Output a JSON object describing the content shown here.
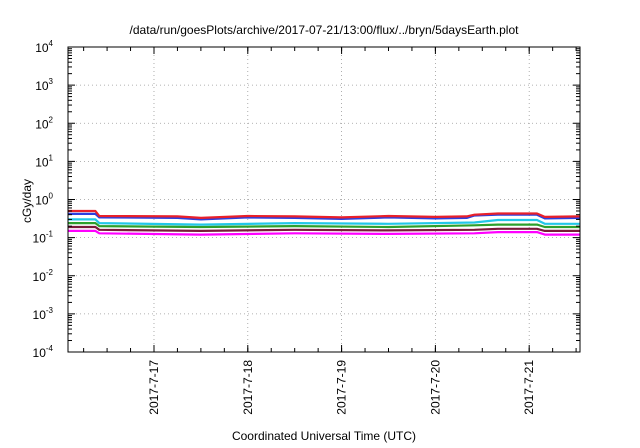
{
  "chart_data": {
    "type": "line",
    "title": "/data/run/goesPlots/archive/2017-07-21/13:00/flux/../bryn/5daysEarth.plot",
    "xlabel": "Coordinated Universal Time (UTC)",
    "ylabel": "cGy/day",
    "y_scale": "log",
    "ylim": [
      0.0001,
      10000
    ],
    "y_ticks": [
      {
        "value": 0.0001,
        "base": "10",
        "exp": "-4"
      },
      {
        "value": 0.001,
        "base": "10",
        "exp": "-3"
      },
      {
        "value": 0.01,
        "base": "10",
        "exp": "-2"
      },
      {
        "value": 0.1,
        "base": "10",
        "exp": "-1"
      },
      {
        "value": 1,
        "base": "10",
        "exp": "0"
      },
      {
        "value": 10,
        "base": "10",
        "exp": "1"
      },
      {
        "value": 100,
        "base": "10",
        "exp": "2"
      },
      {
        "value": 1000,
        "base": "10",
        "exp": "3"
      },
      {
        "value": 10000,
        "base": "10",
        "exp": "4"
      }
    ],
    "x_start": "2017-07-16T02:00",
    "x_end": "2017-07-21T13:00",
    "x_ticks": [
      {
        "value": "2017-07-17T00:00",
        "label": "2017-7-17"
      },
      {
        "value": "2017-07-18T00:00",
        "label": "2017-7-18"
      },
      {
        "value": "2017-07-19T00:00",
        "label": "2017-7-19"
      },
      {
        "value": "2017-07-20T00:00",
        "label": "2017-7-20"
      },
      {
        "value": "2017-07-21T00:00",
        "label": "2017-7-21"
      }
    ],
    "grid": true,
    "series": [
      {
        "color": "#e8202a",
        "x": [
          "2017-07-16T02:00",
          "2017-07-16T09:00",
          "2017-07-16T10:00",
          "2017-07-17T06:00",
          "2017-07-17T12:00",
          "2017-07-18T00:00",
          "2017-07-18T12:00",
          "2017-07-19T00:00",
          "2017-07-19T12:00",
          "2017-07-20T00:00",
          "2017-07-20T08:00",
          "2017-07-20T10:00",
          "2017-07-20T16:00",
          "2017-07-21T02:00",
          "2017-07-21T04:00",
          "2017-07-21T13:00"
        ],
        "y": [
          0.5,
          0.5,
          0.37,
          0.36,
          0.33,
          0.37,
          0.36,
          0.34,
          0.37,
          0.35,
          0.36,
          0.4,
          0.43,
          0.43,
          0.35,
          0.36
        ]
      },
      {
        "color": "#2b3fe0",
        "x": [
          "2017-07-16T02:00",
          "2017-07-16T09:00",
          "2017-07-16T10:00",
          "2017-07-17T06:00",
          "2017-07-17T12:00",
          "2017-07-18T00:00",
          "2017-07-18T12:00",
          "2017-07-19T00:00",
          "2017-07-19T12:00",
          "2017-07-20T00:00",
          "2017-07-20T08:00",
          "2017-07-20T10:00",
          "2017-07-20T16:00",
          "2017-07-21T02:00",
          "2017-07-21T04:00",
          "2017-07-21T13:00"
        ],
        "y": [
          0.42,
          0.42,
          0.34,
          0.33,
          0.3,
          0.34,
          0.33,
          0.31,
          0.34,
          0.32,
          0.33,
          0.38,
          0.4,
          0.4,
          0.32,
          0.33
        ]
      },
      {
        "color": "#22c7e8",
        "x": [
          "2017-07-16T02:00",
          "2017-07-16T09:00",
          "2017-07-16T10:00",
          "2017-07-17T12:00",
          "2017-07-18T12:00",
          "2017-07-19T12:00",
          "2017-07-20T10:00",
          "2017-07-20T16:00",
          "2017-07-21T02:00",
          "2017-07-21T04:00",
          "2017-07-21T13:00"
        ],
        "y": [
          0.3,
          0.3,
          0.24,
          0.22,
          0.24,
          0.23,
          0.25,
          0.29,
          0.29,
          0.23,
          0.23
        ]
      },
      {
        "color": "#2ca02c",
        "x": [
          "2017-07-16T02:00",
          "2017-07-16T09:00",
          "2017-07-16T10:00",
          "2017-07-17T12:00",
          "2017-07-18T12:00",
          "2017-07-19T12:00",
          "2017-07-20T10:00",
          "2017-07-20T16:00",
          "2017-07-21T02:00",
          "2017-07-21T04:00",
          "2017-07-21T13:00"
        ],
        "y": [
          0.24,
          0.24,
          0.2,
          0.19,
          0.2,
          0.19,
          0.21,
          0.22,
          0.22,
          0.19,
          0.19
        ]
      },
      {
        "color": "#7a1a3a",
        "x": [
          "2017-07-16T02:00",
          "2017-07-16T09:00",
          "2017-07-16T10:00",
          "2017-07-17T12:00",
          "2017-07-18T12:00",
          "2017-07-19T12:00",
          "2017-07-20T10:00",
          "2017-07-20T16:00",
          "2017-07-21T02:00",
          "2017-07-21T04:00",
          "2017-07-21T13:00"
        ],
        "y": [
          0.19,
          0.19,
          0.16,
          0.15,
          0.16,
          0.155,
          0.16,
          0.17,
          0.17,
          0.15,
          0.15
        ]
      },
      {
        "color": "#ff00ff",
        "x": [
          "2017-07-16T02:00",
          "2017-07-16T09:00",
          "2017-07-16T10:00",
          "2017-07-17T12:00",
          "2017-07-18T12:00",
          "2017-07-19T12:00",
          "2017-07-20T10:00",
          "2017-07-20T16:00",
          "2017-07-21T02:00",
          "2017-07-21T04:00",
          "2017-07-21T13:00"
        ],
        "y": [
          0.15,
          0.15,
          0.13,
          0.12,
          0.13,
          0.125,
          0.13,
          0.14,
          0.14,
          0.12,
          0.12
        ]
      }
    ]
  }
}
